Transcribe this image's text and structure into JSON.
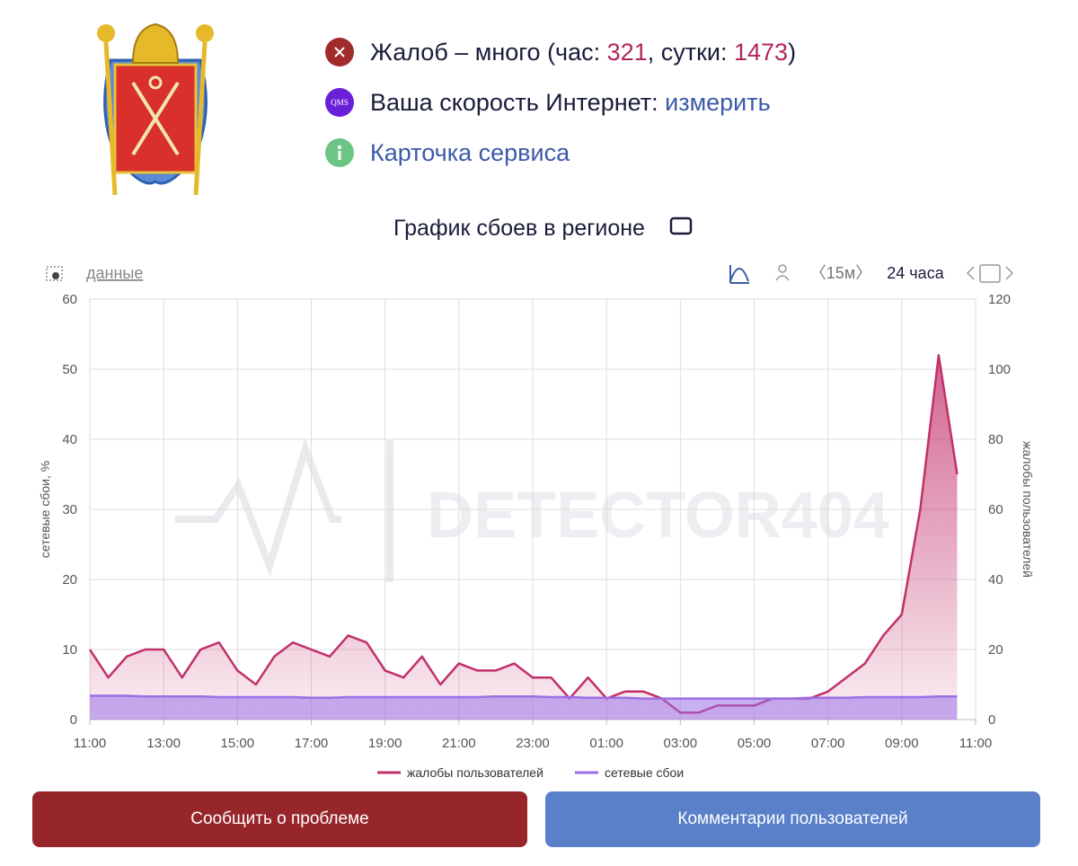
{
  "header": {
    "status": {
      "prefix": "Жалоб – много (час: ",
      "hour": 321,
      "mid": ", сутки: ",
      "day": 1473,
      "suffix": ")"
    },
    "speed": {
      "icon": "QMS",
      "label": "Ваша скорость Интернет: ",
      "link": "измерить"
    },
    "card": "Карточка сервиса"
  },
  "toolbar": {
    "data": "данные",
    "interval": "〈15м〉",
    "period": "24 часа"
  },
  "chart_data": {
    "type": "line",
    "title": "График сбоев в регионе",
    "watermark": "DETECTOR404",
    "ylabel": "сетевые сбои, %",
    "y2label": "жалобы пользователей",
    "x": [
      0,
      0.5,
      1,
      1.5,
      2,
      2.5,
      3,
      3.5,
      4,
      4.5,
      5,
      5.5,
      6,
      6.5,
      7,
      7.5,
      8,
      8.5,
      9,
      9.5,
      10,
      10.5,
      11,
      11.5,
      12,
      12.5,
      13,
      13.5,
      14,
      14.5,
      15,
      15.5,
      16,
      16.5,
      17,
      17.5,
      18,
      18.5,
      19,
      19.5,
      20,
      20.5,
      21,
      21.5,
      22,
      22.5,
      23,
      23.5
    ],
    "xlim": [
      0,
      24
    ],
    "xticks": [
      {
        "value": 0,
        "label": "11:00"
      },
      {
        "value": 2,
        "label": "13:00"
      },
      {
        "value": 4,
        "label": "15:00"
      },
      {
        "value": 6,
        "label": "17:00"
      },
      {
        "value": 8,
        "label": "19:00"
      },
      {
        "value": 10,
        "label": "21:00"
      },
      {
        "value": 12,
        "label": "23:00"
      },
      {
        "value": 14,
        "label": "01:00"
      },
      {
        "value": 16,
        "label": "03:00"
      },
      {
        "value": 18,
        "label": "05:00"
      },
      {
        "value": 20,
        "label": "07:00"
      },
      {
        "value": 22,
        "label": "09:00"
      },
      {
        "value": 24,
        "label": "11:00"
      }
    ],
    "ylim": [
      0,
      60
    ],
    "yticks": [
      0,
      10,
      20,
      30,
      40,
      50,
      60
    ],
    "y2lim": [
      0,
      120
    ],
    "y2ticks": [
      0,
      20,
      40,
      60,
      80,
      100,
      120
    ],
    "grid": true,
    "series": [
      {
        "name": "жалобы пользователей",
        "color": "#c2306a",
        "axis": "y2",
        "values": [
          20,
          12,
          18,
          20,
          20,
          12,
          20,
          22,
          14,
          10,
          18,
          22,
          20,
          18,
          24,
          22,
          14,
          12,
          18,
          10,
          16,
          14,
          14,
          16,
          12,
          12,
          6,
          12,
          6,
          8,
          8,
          6,
          2,
          2,
          4,
          4,
          4,
          6,
          6,
          6,
          8,
          12,
          16,
          24,
          30,
          60,
          104,
          70
        ]
      },
      {
        "name": "сетевые сбои",
        "color": "#9b6fe6",
        "values": [
          3.4,
          3.4,
          3.4,
          3.3,
          3.3,
          3.3,
          3.3,
          3.2,
          3.2,
          3.2,
          3.2,
          3.2,
          3.1,
          3.1,
          3.2,
          3.2,
          3.2,
          3.2,
          3.2,
          3.2,
          3.2,
          3.2,
          3.3,
          3.3,
          3.3,
          3.2,
          3.2,
          3.1,
          3.1,
          3.1,
          3.0,
          3.0,
          3.0,
          3.0,
          3.0,
          3.0,
          3.0,
          3.0,
          3.0,
          3.1,
          3.1,
          3.1,
          3.2,
          3.2,
          3.2,
          3.2,
          3.3,
          3.3
        ]
      }
    ]
  },
  "buttons": {
    "report": "Сообщить о проблеме",
    "comments": "Комментарии пользователей"
  }
}
